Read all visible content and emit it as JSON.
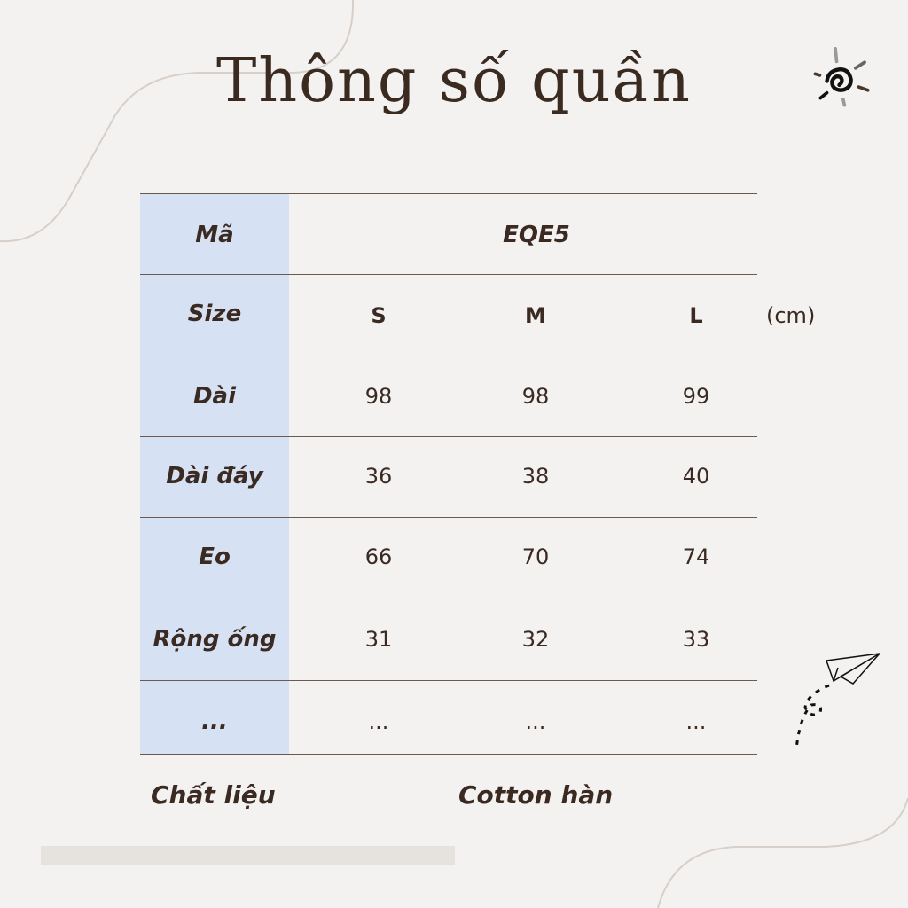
{
  "title": "Thông số quần",
  "code_label": "Mã",
  "code_value": "EQE5",
  "size_label": "Size",
  "sizes": [
    "S",
    "M",
    "L"
  ],
  "unit": "(cm)",
  "rows": [
    {
      "label": "Dài",
      "values": [
        "98",
        "98",
        "99"
      ]
    },
    {
      "label": "Dài đáy",
      "values": [
        "36",
        "38",
        "40"
      ]
    },
    {
      "label": "Eo",
      "values": [
        "66",
        "70",
        "74"
      ]
    },
    {
      "label": "Rộng ống",
      "values": [
        "31",
        "32",
        "33"
      ]
    },
    {
      "label": "...",
      "values": [
        "...",
        "...",
        "..."
      ]
    }
  ],
  "material_label": "Chất liệu",
  "material_value": "Cotton hàn",
  "colors": {
    "label_column": "#d6e1f4",
    "text": "#3b2a22",
    "background": "#f3f2f1"
  },
  "icons": [
    "sun-spiral-icon",
    "paper-plane-icon"
  ]
}
